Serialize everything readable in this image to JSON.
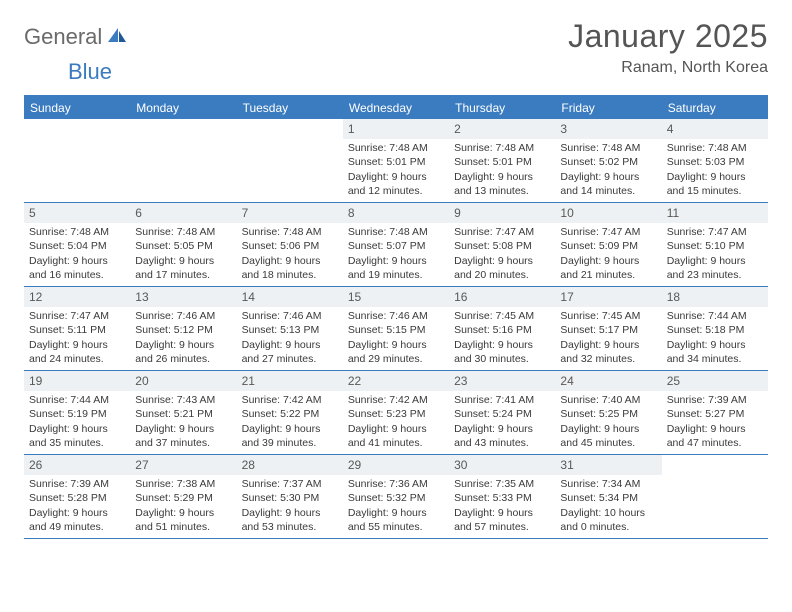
{
  "logo": {
    "text_general": "General",
    "text_blue": "Blue"
  },
  "header": {
    "month_title": "January 2025",
    "location": "Ranam, North Korea"
  },
  "colors": {
    "primary": "#3b7bbf",
    "header_bg": "#3b7bbf",
    "day_number_bg": "#eef1f3",
    "text": "#3a3a3a",
    "title_text": "#555555"
  },
  "days_of_week": [
    "Sunday",
    "Monday",
    "Tuesday",
    "Wednesday",
    "Thursday",
    "Friday",
    "Saturday"
  ],
  "weeks": [
    [
      null,
      null,
      null,
      {
        "n": "1",
        "sunrise": "Sunrise: 7:48 AM",
        "sunset": "Sunset: 5:01 PM",
        "daylight": "Daylight: 9 hours and 12 minutes."
      },
      {
        "n": "2",
        "sunrise": "Sunrise: 7:48 AM",
        "sunset": "Sunset: 5:01 PM",
        "daylight": "Daylight: 9 hours and 13 minutes."
      },
      {
        "n": "3",
        "sunrise": "Sunrise: 7:48 AM",
        "sunset": "Sunset: 5:02 PM",
        "daylight": "Daylight: 9 hours and 14 minutes."
      },
      {
        "n": "4",
        "sunrise": "Sunrise: 7:48 AM",
        "sunset": "Sunset: 5:03 PM",
        "daylight": "Daylight: 9 hours and 15 minutes."
      }
    ],
    [
      {
        "n": "5",
        "sunrise": "Sunrise: 7:48 AM",
        "sunset": "Sunset: 5:04 PM",
        "daylight": "Daylight: 9 hours and 16 minutes."
      },
      {
        "n": "6",
        "sunrise": "Sunrise: 7:48 AM",
        "sunset": "Sunset: 5:05 PM",
        "daylight": "Daylight: 9 hours and 17 minutes."
      },
      {
        "n": "7",
        "sunrise": "Sunrise: 7:48 AM",
        "sunset": "Sunset: 5:06 PM",
        "daylight": "Daylight: 9 hours and 18 minutes."
      },
      {
        "n": "8",
        "sunrise": "Sunrise: 7:48 AM",
        "sunset": "Sunset: 5:07 PM",
        "daylight": "Daylight: 9 hours and 19 minutes."
      },
      {
        "n": "9",
        "sunrise": "Sunrise: 7:47 AM",
        "sunset": "Sunset: 5:08 PM",
        "daylight": "Daylight: 9 hours and 20 minutes."
      },
      {
        "n": "10",
        "sunrise": "Sunrise: 7:47 AM",
        "sunset": "Sunset: 5:09 PM",
        "daylight": "Daylight: 9 hours and 21 minutes."
      },
      {
        "n": "11",
        "sunrise": "Sunrise: 7:47 AM",
        "sunset": "Sunset: 5:10 PM",
        "daylight": "Daylight: 9 hours and 23 minutes."
      }
    ],
    [
      {
        "n": "12",
        "sunrise": "Sunrise: 7:47 AM",
        "sunset": "Sunset: 5:11 PM",
        "daylight": "Daylight: 9 hours and 24 minutes."
      },
      {
        "n": "13",
        "sunrise": "Sunrise: 7:46 AM",
        "sunset": "Sunset: 5:12 PM",
        "daylight": "Daylight: 9 hours and 26 minutes."
      },
      {
        "n": "14",
        "sunrise": "Sunrise: 7:46 AM",
        "sunset": "Sunset: 5:13 PM",
        "daylight": "Daylight: 9 hours and 27 minutes."
      },
      {
        "n": "15",
        "sunrise": "Sunrise: 7:46 AM",
        "sunset": "Sunset: 5:15 PM",
        "daylight": "Daylight: 9 hours and 29 minutes."
      },
      {
        "n": "16",
        "sunrise": "Sunrise: 7:45 AM",
        "sunset": "Sunset: 5:16 PM",
        "daylight": "Daylight: 9 hours and 30 minutes."
      },
      {
        "n": "17",
        "sunrise": "Sunrise: 7:45 AM",
        "sunset": "Sunset: 5:17 PM",
        "daylight": "Daylight: 9 hours and 32 minutes."
      },
      {
        "n": "18",
        "sunrise": "Sunrise: 7:44 AM",
        "sunset": "Sunset: 5:18 PM",
        "daylight": "Daylight: 9 hours and 34 minutes."
      }
    ],
    [
      {
        "n": "19",
        "sunrise": "Sunrise: 7:44 AM",
        "sunset": "Sunset: 5:19 PM",
        "daylight": "Daylight: 9 hours and 35 minutes."
      },
      {
        "n": "20",
        "sunrise": "Sunrise: 7:43 AM",
        "sunset": "Sunset: 5:21 PM",
        "daylight": "Daylight: 9 hours and 37 minutes."
      },
      {
        "n": "21",
        "sunrise": "Sunrise: 7:42 AM",
        "sunset": "Sunset: 5:22 PM",
        "daylight": "Daylight: 9 hours and 39 minutes."
      },
      {
        "n": "22",
        "sunrise": "Sunrise: 7:42 AM",
        "sunset": "Sunset: 5:23 PM",
        "daylight": "Daylight: 9 hours and 41 minutes."
      },
      {
        "n": "23",
        "sunrise": "Sunrise: 7:41 AM",
        "sunset": "Sunset: 5:24 PM",
        "daylight": "Daylight: 9 hours and 43 minutes."
      },
      {
        "n": "24",
        "sunrise": "Sunrise: 7:40 AM",
        "sunset": "Sunset: 5:25 PM",
        "daylight": "Daylight: 9 hours and 45 minutes."
      },
      {
        "n": "25",
        "sunrise": "Sunrise: 7:39 AM",
        "sunset": "Sunset: 5:27 PM",
        "daylight": "Daylight: 9 hours and 47 minutes."
      }
    ],
    [
      {
        "n": "26",
        "sunrise": "Sunrise: 7:39 AM",
        "sunset": "Sunset: 5:28 PM",
        "daylight": "Daylight: 9 hours and 49 minutes."
      },
      {
        "n": "27",
        "sunrise": "Sunrise: 7:38 AM",
        "sunset": "Sunset: 5:29 PM",
        "daylight": "Daylight: 9 hours and 51 minutes."
      },
      {
        "n": "28",
        "sunrise": "Sunrise: 7:37 AM",
        "sunset": "Sunset: 5:30 PM",
        "daylight": "Daylight: 9 hours and 53 minutes."
      },
      {
        "n": "29",
        "sunrise": "Sunrise: 7:36 AM",
        "sunset": "Sunset: 5:32 PM",
        "daylight": "Daylight: 9 hours and 55 minutes."
      },
      {
        "n": "30",
        "sunrise": "Sunrise: 7:35 AM",
        "sunset": "Sunset: 5:33 PM",
        "daylight": "Daylight: 9 hours and 57 minutes."
      },
      {
        "n": "31",
        "sunrise": "Sunrise: 7:34 AM",
        "sunset": "Sunset: 5:34 PM",
        "daylight": "Daylight: 10 hours and 0 minutes."
      },
      null
    ]
  ]
}
